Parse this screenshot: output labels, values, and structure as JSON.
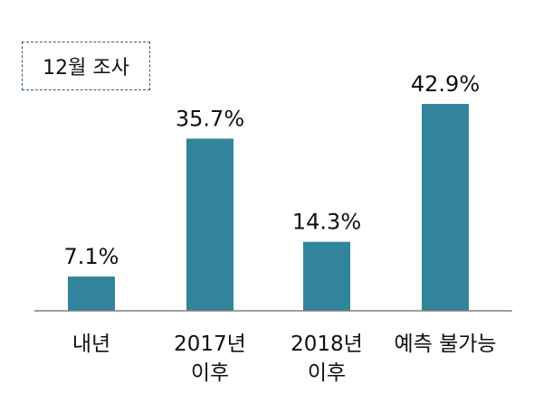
{
  "annotation": "12월 조사",
  "colors": {
    "bar": "#31849b",
    "axis": "#808080",
    "text": "#111111",
    "box_border": "#2e5f86"
  },
  "chart_data": {
    "type": "bar",
    "title": "",
    "xlabel": "",
    "ylabel": "",
    "categories": [
      [
        "내년"
      ],
      [
        "2017년",
        "이후"
      ],
      [
        "2018년",
        "이후"
      ],
      [
        "예측 불가능"
      ]
    ],
    "values": [
      7.1,
      35.7,
      14.3,
      42.9
    ],
    "value_labels": [
      "7.1%",
      "35.7%",
      "14.3%",
      "42.9%"
    ],
    "ylim": [
      0,
      50
    ],
    "grid": false,
    "legend": "none"
  }
}
